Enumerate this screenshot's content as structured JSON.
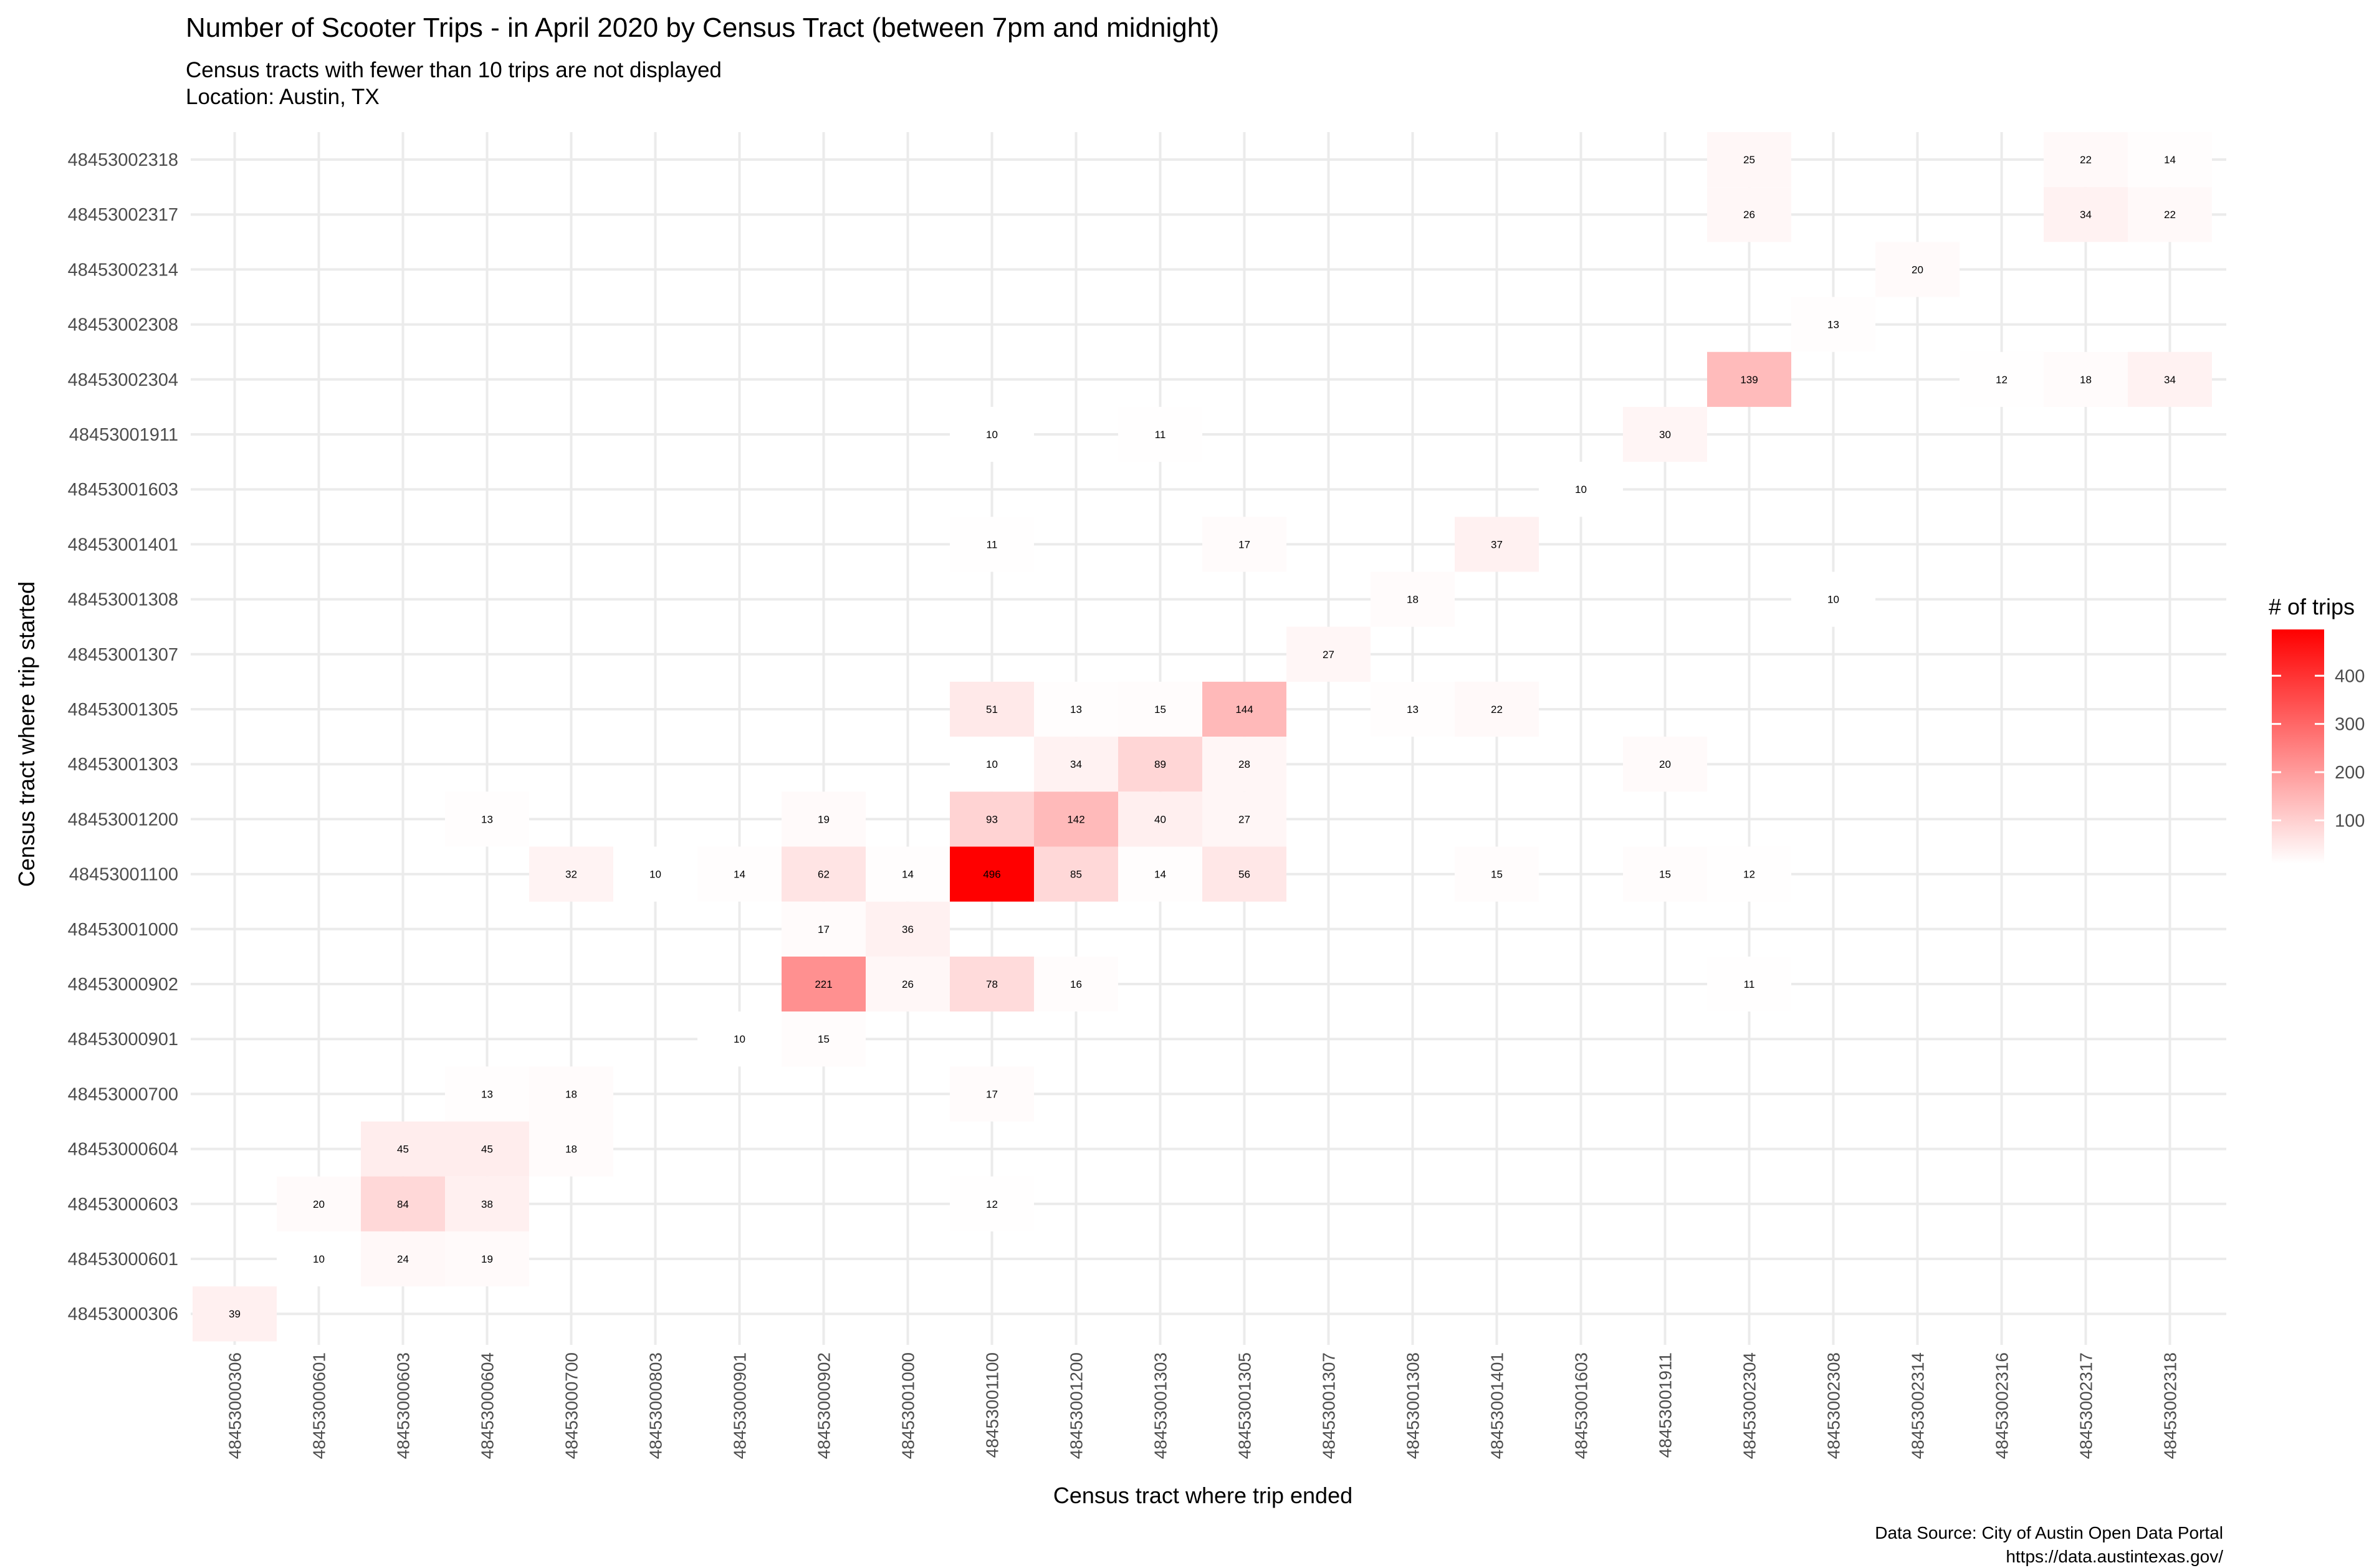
{
  "chart_data": {
    "type": "heatmap",
    "title": "Number of Scooter Trips - in April 2020 by Census Tract (between 7pm  and midnight)",
    "subtitle_lines": [
      "Census tracts with fewer than 10 trips are not displayed",
      "Location: Austin, TX"
    ],
    "xlabel": "Census tract where trip ended",
    "ylabel": "Census tract where trip started",
    "x_categories": [
      "48453000306",
      "48453000601",
      "48453000603",
      "48453000604",
      "48453000700",
      "48453000803",
      "48453000901",
      "48453000902",
      "48453001000",
      "48453001100",
      "48453001200",
      "48453001303",
      "48453001305",
      "48453001307",
      "48453001308",
      "48453001401",
      "48453001603",
      "48453001911",
      "48453002304",
      "48453002308",
      "48453002314",
      "48453002316",
      "48453002317",
      "48453002318"
    ],
    "y_categories": [
      "48453002318",
      "48453002317",
      "48453002314",
      "48453002308",
      "48453002304",
      "48453001911",
      "48453001603",
      "48453001401",
      "48453001308",
      "48453001307",
      "48453001305",
      "48453001303",
      "48453001200",
      "48453001100",
      "48453001000",
      "48453000902",
      "48453000901",
      "48453000700",
      "48453000604",
      "48453000603",
      "48453000601",
      "48453000306"
    ],
    "cells": [
      {
        "y": "48453002318",
        "x": "48453002304",
        "value": 25
      },
      {
        "y": "48453002318",
        "x": "48453002317",
        "value": 22
      },
      {
        "y": "48453002318",
        "x": "48453002318",
        "value": 14
      },
      {
        "y": "48453002317",
        "x": "48453002304",
        "value": 26
      },
      {
        "y": "48453002317",
        "x": "48453002317",
        "value": 34
      },
      {
        "y": "48453002317",
        "x": "48453002318",
        "value": 22
      },
      {
        "y": "48453002314",
        "x": "48453002314",
        "value": 20
      },
      {
        "y": "48453002308",
        "x": "48453002308",
        "value": 13
      },
      {
        "y": "48453002304",
        "x": "48453002304",
        "value": 139
      },
      {
        "y": "48453002304",
        "x": "48453002316",
        "value": 12
      },
      {
        "y": "48453002304",
        "x": "48453002317",
        "value": 18
      },
      {
        "y": "48453002304",
        "x": "48453002318",
        "value": 34
      },
      {
        "y": "48453001911",
        "x": "48453001100",
        "value": 10
      },
      {
        "y": "48453001911",
        "x": "48453001303",
        "value": 11
      },
      {
        "y": "48453001911",
        "x": "48453001911",
        "value": 30
      },
      {
        "y": "48453001603",
        "x": "48453001603",
        "value": 10
      },
      {
        "y": "48453001401",
        "x": "48453001100",
        "value": 11
      },
      {
        "y": "48453001401",
        "x": "48453001305",
        "value": 17
      },
      {
        "y": "48453001401",
        "x": "48453001401",
        "value": 37
      },
      {
        "y": "48453001308",
        "x": "48453001308",
        "value": 18
      },
      {
        "y": "48453001308",
        "x": "48453002308",
        "value": 10
      },
      {
        "y": "48453001307",
        "x": "48453001307",
        "value": 27
      },
      {
        "y": "48453001305",
        "x": "48453001100",
        "value": 51
      },
      {
        "y": "48453001305",
        "x": "48453001200",
        "value": 13
      },
      {
        "y": "48453001305",
        "x": "48453001303",
        "value": 15
      },
      {
        "y": "48453001305",
        "x": "48453001305",
        "value": 144
      },
      {
        "y": "48453001305",
        "x": "48453001308",
        "value": 13
      },
      {
        "y": "48453001305",
        "x": "48453001401",
        "value": 22
      },
      {
        "y": "48453001303",
        "x": "48453001100",
        "value": 10
      },
      {
        "y": "48453001303",
        "x": "48453001200",
        "value": 34
      },
      {
        "y": "48453001303",
        "x": "48453001303",
        "value": 89
      },
      {
        "y": "48453001303",
        "x": "48453001305",
        "value": 28
      },
      {
        "y": "48453001303",
        "x": "48453001911",
        "value": 20
      },
      {
        "y": "48453001200",
        "x": "48453000604",
        "value": 13
      },
      {
        "y": "48453001200",
        "x": "48453000902",
        "value": 19
      },
      {
        "y": "48453001200",
        "x": "48453001100",
        "value": 93
      },
      {
        "y": "48453001200",
        "x": "48453001200",
        "value": 142
      },
      {
        "y": "48453001200",
        "x": "48453001303",
        "value": 40
      },
      {
        "y": "48453001200",
        "x": "48453001305",
        "value": 27
      },
      {
        "y": "48453001100",
        "x": "48453000700",
        "value": 32
      },
      {
        "y": "48453001100",
        "x": "48453000803",
        "value": 10
      },
      {
        "y": "48453001100",
        "x": "48453000901",
        "value": 14
      },
      {
        "y": "48453001100",
        "x": "48453000902",
        "value": 62
      },
      {
        "y": "48453001100",
        "x": "48453001000",
        "value": 14
      },
      {
        "y": "48453001100",
        "x": "48453001100",
        "value": 496
      },
      {
        "y": "48453001100",
        "x": "48453001200",
        "value": 85
      },
      {
        "y": "48453001100",
        "x": "48453001303",
        "value": 14
      },
      {
        "y": "48453001100",
        "x": "48453001305",
        "value": 56
      },
      {
        "y": "48453001100",
        "x": "48453001401",
        "value": 15
      },
      {
        "y": "48453001100",
        "x": "48453001911",
        "value": 15
      },
      {
        "y": "48453001100",
        "x": "48453002304",
        "value": 12
      },
      {
        "y": "48453001000",
        "x": "48453000902",
        "value": 17
      },
      {
        "y": "48453001000",
        "x": "48453001000",
        "value": 36
      },
      {
        "y": "48453000902",
        "x": "48453000902",
        "value": 221
      },
      {
        "y": "48453000902",
        "x": "48453001000",
        "value": 26
      },
      {
        "y": "48453000902",
        "x": "48453001100",
        "value": 78
      },
      {
        "y": "48453000902",
        "x": "48453001200",
        "value": 16
      },
      {
        "y": "48453000902",
        "x": "48453002304",
        "value": 11
      },
      {
        "y": "48453000901",
        "x": "48453000901",
        "value": 10
      },
      {
        "y": "48453000901",
        "x": "48453000902",
        "value": 15
      },
      {
        "y": "48453000700",
        "x": "48453000604",
        "value": 13
      },
      {
        "y": "48453000700",
        "x": "48453000700",
        "value": 18
      },
      {
        "y": "48453000700",
        "x": "48453001100",
        "value": 17
      },
      {
        "y": "48453000604",
        "x": "48453000603",
        "value": 45
      },
      {
        "y": "48453000604",
        "x": "48453000604",
        "value": 45
      },
      {
        "y": "48453000604",
        "x": "48453000700",
        "value": 18
      },
      {
        "y": "48453000603",
        "x": "48453000601",
        "value": 20
      },
      {
        "y": "48453000603",
        "x": "48453000603",
        "value": 84
      },
      {
        "y": "48453000603",
        "x": "48453000604",
        "value": 38
      },
      {
        "y": "48453000603",
        "x": "48453001100",
        "value": 12
      },
      {
        "y": "48453000601",
        "x": "48453000601",
        "value": 10
      },
      {
        "y": "48453000601",
        "x": "48453000603",
        "value": 24
      },
      {
        "y": "48453000601",
        "x": "48453000604",
        "value": 19
      },
      {
        "y": "48453000306",
        "x": "48453000306",
        "value": 39
      }
    ],
    "color_scale": {
      "low": "#ffffff",
      "high": "#ff0000",
      "min": 10,
      "max": 496
    },
    "legend": {
      "title": "# of trips",
      "ticks": [
        100,
        200,
        300,
        400
      ],
      "placement": "right"
    },
    "grid": true,
    "caption_lines": [
      "Data Source: City of Austin Open Data Portal",
      "https://data.austintexas.gov/"
    ]
  }
}
